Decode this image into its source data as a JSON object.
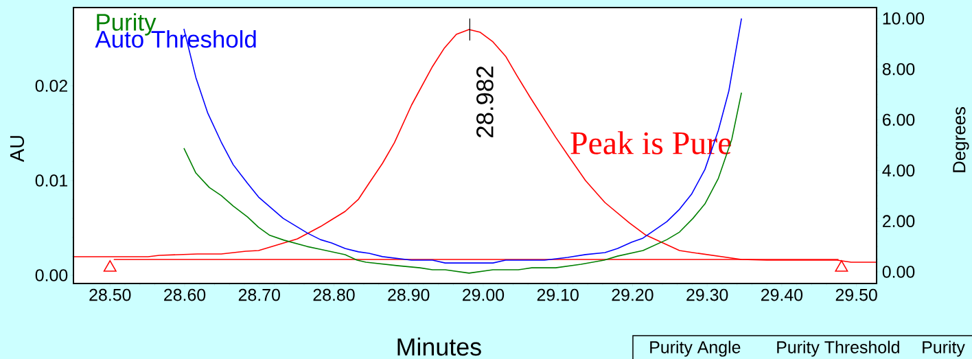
{
  "chart_data": {
    "type": "line",
    "xlabel": "Minutes",
    "ylabel": "AU",
    "y2label": "Degrees",
    "xlim": [
      28.451,
      29.527
    ],
    "ylim": [
      -0.00087,
      0.02826
    ],
    "y2lim": [
      -0.46,
      10.43
    ],
    "xticks": [
      {
        "value": 28.5,
        "label": "28.50"
      },
      {
        "value": 28.6,
        "label": "28.60"
      },
      {
        "value": 28.7,
        "label": "28.70"
      },
      {
        "value": 28.8,
        "label": "28.80"
      },
      {
        "value": 28.9,
        "label": "28.90"
      },
      {
        "value": 29.0,
        "label": "29.00"
      },
      {
        "value": 29.1,
        "label": "29.10"
      },
      {
        "value": 29.2,
        "label": "29.20"
      },
      {
        "value": 29.3,
        "label": "29.30"
      },
      {
        "value": 29.4,
        "label": "29.40"
      },
      {
        "value": 29.5,
        "label": "29.50"
      }
    ],
    "yticks": [
      {
        "value": 0,
        "label": "0.00"
      },
      {
        "value": 0.01,
        "label": "0.01"
      },
      {
        "value": 0.02,
        "label": "0.02"
      }
    ],
    "y2ticks": [
      {
        "value": 0,
        "label": "0.00"
      },
      {
        "value": 2,
        "label": "2.00"
      },
      {
        "value": 4,
        "label": "4.00"
      },
      {
        "value": 6,
        "label": "6.00"
      },
      {
        "value": 8,
        "label": "8.00"
      },
      {
        "value": 10,
        "label": "10.00"
      }
    ],
    "legend": "top left",
    "series": [
      {
        "color": "#ff0000",
        "x": [
          28.451,
          28.5,
          28.551,
          28.566,
          28.617,
          28.649,
          28.682,
          28.699,
          28.751,
          28.782,
          28.797,
          28.815,
          28.833,
          28.847,
          28.865,
          28.881,
          28.904,
          28.932,
          28.948,
          28.964,
          28.981,
          28.996,
          29.013,
          29.03,
          29.045,
          29.063,
          29.097,
          29.114,
          29.137,
          29.163,
          29.196,
          29.217,
          29.263,
          29.281,
          29.346,
          29.38,
          29.474,
          29.493,
          29.527
        ],
        "values": [
          0.00196,
          0.00196,
          0.00196,
          0.0021,
          0.00225,
          0.00225,
          0.00254,
          0.00261,
          0.00384,
          0.00514,
          0.00587,
          0.00674,
          0.00804,
          0.00971,
          0.01181,
          0.01399,
          0.01797,
          0.02203,
          0.02399,
          0.02543,
          0.02594,
          0.02565,
          0.02464,
          0.02312,
          0.02109,
          0.01877,
          0.01457,
          0.01261,
          0.01,
          0.00768,
          0.00551,
          0.00428,
          0.00261,
          0.00239,
          0.00167,
          0.00159,
          0.00159,
          0.00138,
          0.00138
        ]
      },
      {
        "color": "#ff0000",
        "x": [
          28.505,
          29.476
        ],
        "values": [
          0.00167,
          0.00167
        ]
      },
      {
        "type": "scatter",
        "marker": "triangle",
        "color": "#ff0000",
        "x": [
          28.5,
          29.48
        ],
        "values": [
          0.0008,
          0.0008
        ]
      },
      {
        "name": "Purity",
        "axis": "y2",
        "color": "#008000",
        "x": [
          28.599,
          28.615,
          28.633,
          28.649,
          28.665,
          28.684,
          28.699,
          28.714,
          28.733,
          28.764,
          28.782,
          28.815,
          28.831,
          28.843,
          28.886,
          28.915,
          28.932,
          28.949,
          28.981,
          29.013,
          29.047,
          29.065,
          29.097,
          29.131,
          29.162,
          29.18,
          29.214,
          29.246,
          29.263,
          29.281,
          29.297,
          29.315,
          29.333,
          29.346
        ],
        "values": [
          4.88,
          3.9,
          3.33,
          3.01,
          2.6,
          2.17,
          1.76,
          1.44,
          1.25,
          1.0,
          0.89,
          0.68,
          0.46,
          0.38,
          0.24,
          0.16,
          0.08,
          0.08,
          -0.05,
          0.08,
          0.08,
          0.16,
          0.16,
          0.3,
          0.46,
          0.62,
          0.84,
          1.27,
          1.57,
          2.11,
          2.68,
          3.69,
          5.23,
          7.07
        ]
      },
      {
        "name": "Auto Threshold",
        "axis": "y2",
        "color": "#0000ff",
        "x": [
          28.599,
          28.615,
          28.631,
          28.649,
          28.665,
          28.684,
          28.699,
          28.732,
          28.765,
          28.782,
          28.797,
          28.815,
          28.833,
          28.847,
          28.865,
          28.904,
          28.932,
          28.949,
          29.013,
          29.03,
          29.082,
          29.113,
          29.137,
          29.163,
          29.18,
          29.199,
          29.214,
          29.246,
          29.263,
          29.279,
          29.297,
          29.315,
          29.329,
          29.346
        ],
        "values": [
          9.59,
          7.67,
          6.26,
          5.12,
          4.23,
          3.5,
          2.95,
          2.11,
          1.52,
          1.27,
          1.14,
          0.92,
          0.79,
          0.73,
          0.6,
          0.46,
          0.46,
          0.35,
          0.35,
          0.46,
          0.46,
          0.57,
          0.68,
          0.76,
          0.92,
          1.17,
          1.33,
          1.98,
          2.47,
          3.06,
          4.04,
          5.58,
          7.13,
          10.0
        ]
      }
    ],
    "annotations": [
      {
        "text": "28.982",
        "x": 28.982,
        "y": 0.02594
      },
      "Peak is Pure",
      "Purity Angle",
      "Purity Threshold",
      "Purity"
    ]
  }
}
